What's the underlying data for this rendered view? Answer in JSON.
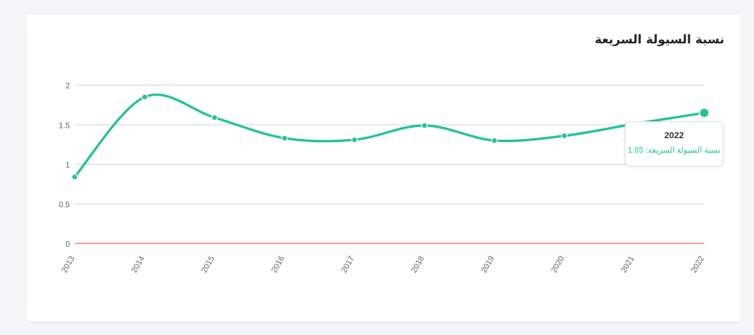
{
  "card": {
    "title": "نسبة السيولة السريعة"
  },
  "chart_data": {
    "type": "line",
    "title": "نسبة السيولة السريعة",
    "categories": [
      "2013",
      "2014",
      "2015",
      "2016",
      "2017",
      "2018",
      "2019",
      "2020",
      "2021",
      "2022"
    ],
    "series": [
      {
        "name": "نسبة السيولة السريعة",
        "values": [
          0.84,
          1.85,
          1.59,
          1.33,
          1.31,
          1.49,
          1.3,
          1.36,
          1.51,
          1.65
        ]
      }
    ],
    "ylim": [
      0,
      2
    ],
    "yticks": [
      "0",
      "0.5",
      "1",
      "1.5",
      "2"
    ],
    "ytick_values": [
      0,
      0.5,
      1,
      1.5,
      2
    ],
    "grid": true,
    "baseline_color": "#e74c3c",
    "line_color": "#26c19b",
    "xlabel": "",
    "ylabel": ""
  },
  "tooltip": {
    "year": "2022",
    "label": "نسبة السيولة السريعة: 1.65"
  }
}
